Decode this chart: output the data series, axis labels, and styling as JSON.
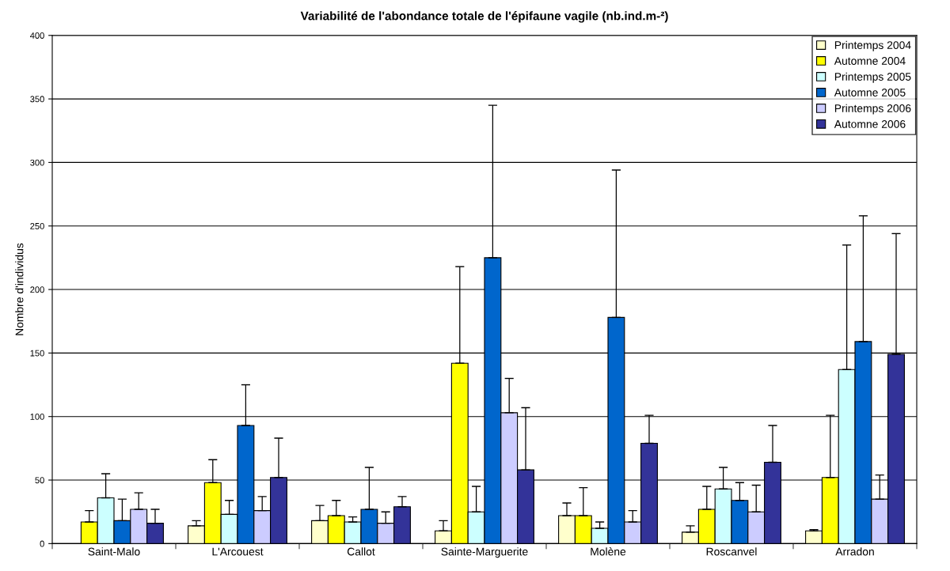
{
  "chart_data": {
    "type": "bar",
    "title": "Variabilité de l'abondance totale de l'épifaune vagile (nb.ind.m-²)",
    "ylabel": "Nombre d'individus",
    "categories": [
      "Saint-Malo",
      "L'Arcouest",
      "Callot",
      "Sainte-Marguerite",
      "Molène",
      "Roscanvel",
      "Arradon"
    ],
    "series": [
      {
        "name": "Printemps 2004",
        "color": "#ffffcc",
        "values": [
          null,
          14,
          18,
          10,
          22,
          9,
          10
        ],
        "errors": [
          null,
          [
            14,
            18
          ],
          [
            18,
            30
          ],
          [
            10,
            18
          ],
          [
            22,
            32
          ],
          [
            9,
            14
          ],
          [
            10,
            11
          ]
        ]
      },
      {
        "name": "Automne 2004",
        "color": "#ffff00",
        "values": [
          17,
          48,
          22,
          142,
          22,
          27,
          52
        ],
        "errors": [
          [
            17,
            26
          ],
          [
            48,
            66
          ],
          [
            22,
            34
          ],
          [
            142,
            218
          ],
          [
            22,
            44
          ],
          [
            27,
            45
          ],
          [
            52,
            101
          ]
        ]
      },
      {
        "name": "Printemps 2005",
        "color": "#ccffff",
        "values": [
          36,
          23,
          17,
          25,
          12,
          43,
          137
        ],
        "errors": [
          [
            36,
            55
          ],
          [
            23,
            34
          ],
          [
            17,
            21
          ],
          [
            25,
            45
          ],
          [
            12,
            17
          ],
          [
            43,
            60
          ],
          [
            137,
            235
          ]
        ]
      },
      {
        "name": "Automne 2005",
        "color": "#0066cc",
        "values": [
          18,
          93,
          27,
          225,
          178,
          34,
          159
        ],
        "errors": [
          [
            18,
            35
          ],
          [
            93,
            125
          ],
          [
            27,
            60
          ],
          [
            225,
            345
          ],
          [
            178,
            294
          ],
          [
            34,
            48
          ],
          [
            159,
            258
          ]
        ]
      },
      {
        "name": "Printemps 2006",
        "color": "#ccccff",
        "values": [
          27,
          26,
          16,
          103,
          17,
          25,
          35
        ],
        "errors": [
          [
            27,
            40
          ],
          [
            26,
            37
          ],
          [
            16,
            25
          ],
          [
            103,
            130
          ],
          [
            17,
            26
          ],
          [
            25,
            46
          ],
          [
            35,
            54
          ]
        ]
      },
      {
        "name": "Automne 2006",
        "color": "#333399",
        "values": [
          16,
          52,
          29,
          58,
          79,
          64,
          149
        ],
        "errors": [
          [
            16,
            27
          ],
          [
            52,
            83
          ],
          [
            29,
            37
          ],
          [
            58,
            107
          ],
          [
            79,
            101
          ],
          [
            64,
            93
          ],
          [
            149,
            244
          ]
        ]
      }
    ],
    "ylim": [
      0,
      400
    ],
    "yticks": [
      0,
      50,
      100,
      150,
      200,
      250,
      300,
      350,
      400
    ],
    "grid": "y",
    "legend": "top right"
  }
}
